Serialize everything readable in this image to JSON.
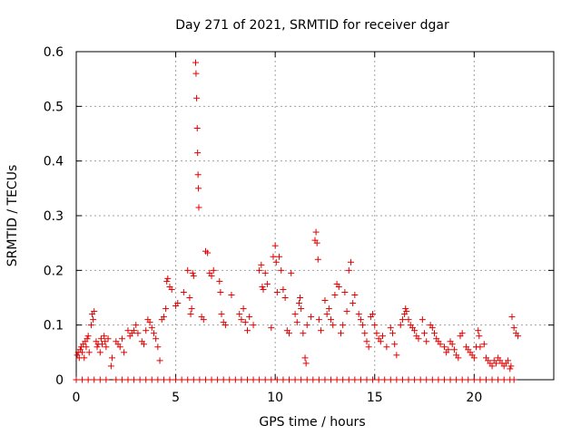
{
  "chart_data": {
    "type": "scatter",
    "title": "Day 271 of 2021, SRMTID for receiver dgar",
    "xlabel": "GPS time / hours",
    "ylabel": "SRMTID / TECUs",
    "xlim": [
      0,
      24
    ],
    "ylim": [
      0,
      0.6
    ],
    "xticks": [
      0,
      5,
      10,
      15,
      20
    ],
    "yticks": [
      0,
      0.1,
      0.2,
      0.3,
      0.4,
      0.5,
      0.6
    ],
    "xtick_labels": [
      "0",
      "5",
      "10",
      "15",
      "20"
    ],
    "ytick_labels": [
      "0",
      "0.1",
      "0.2",
      "0.3",
      "0.4",
      "0.5",
      "0.6"
    ],
    "grid": true,
    "marker": "+",
    "color": "#e00000",
    "series": [
      {
        "name": "SRMTID",
        "points": [
          [
            0.05,
            0.045
          ],
          [
            0.1,
            0.05
          ],
          [
            0.15,
            0.04
          ],
          [
            0.2,
            0.055
          ],
          [
            0.25,
            0.06
          ],
          [
            0.3,
            0.05
          ],
          [
            0.35,
            0.065
          ],
          [
            0.4,
            0.04
          ],
          [
            0.45,
            0.07
          ],
          [
            0.5,
            0.06
          ],
          [
            0.55,
            0.075
          ],
          [
            0.6,
            0.08
          ],
          [
            0.65,
            0.05
          ],
          [
            0.75,
            0.1
          ],
          [
            0.8,
            0.12
          ],
          [
            0.85,
            0.11
          ],
          [
            0.9,
            0.125
          ],
          [
            1.0,
            0.07
          ],
          [
            1.05,
            0.06
          ],
          [
            1.1,
            0.065
          ],
          [
            1.2,
            0.05
          ],
          [
            1.25,
            0.075
          ],
          [
            1.3,
            0.065
          ],
          [
            1.4,
            0.08
          ],
          [
            1.45,
            0.07
          ],
          [
            1.5,
            0.06
          ],
          [
            1.6,
            0.075
          ],
          [
            1.75,
            0.025
          ],
          [
            1.8,
            0.04
          ],
          [
            2.0,
            0.07
          ],
          [
            2.1,
            0.065
          ],
          [
            2.2,
            0.06
          ],
          [
            2.3,
            0.075
          ],
          [
            2.4,
            0.05
          ],
          [
            2.6,
            0.09
          ],
          [
            2.7,
            0.08
          ],
          [
            2.8,
            0.085
          ],
          [
            2.9,
            0.09
          ],
          [
            3.0,
            0.1
          ],
          [
            3.1,
            0.085
          ],
          [
            3.3,
            0.07
          ],
          [
            3.4,
            0.065
          ],
          [
            3.5,
            0.09
          ],
          [
            3.6,
            0.11
          ],
          [
            3.7,
            0.105
          ],
          [
            3.8,
            0.095
          ],
          [
            3.9,
            0.085
          ],
          [
            4.0,
            0.075
          ],
          [
            4.1,
            0.06
          ],
          [
            4.2,
            0.035
          ],
          [
            4.3,
            0.11
          ],
          [
            4.4,
            0.115
          ],
          [
            4.5,
            0.13
          ],
          [
            4.55,
            0.18
          ],
          [
            4.6,
            0.185
          ],
          [
            4.7,
            0.17
          ],
          [
            4.8,
            0.165
          ],
          [
            5.0,
            0.135
          ],
          [
            5.1,
            0.14
          ],
          [
            5.4,
            0.16
          ],
          [
            5.6,
            0.2
          ],
          [
            5.7,
            0.15
          ],
          [
            5.75,
            0.12
          ],
          [
            5.8,
            0.13
          ],
          [
            5.85,
            0.195
          ],
          [
            5.9,
            0.19
          ],
          [
            6.0,
            0.58
          ],
          [
            6.02,
            0.56
          ],
          [
            6.05,
            0.515
          ],
          [
            6.08,
            0.46
          ],
          [
            6.1,
            0.415
          ],
          [
            6.12,
            0.375
          ],
          [
            6.14,
            0.35
          ],
          [
            6.16,
            0.315
          ],
          [
            6.3,
            0.115
          ],
          [
            6.4,
            0.11
          ],
          [
            6.5,
            0.235
          ],
          [
            6.6,
            0.232
          ],
          [
            6.7,
            0.195
          ],
          [
            6.8,
            0.19
          ],
          [
            6.9,
            0.2
          ],
          [
            7.2,
            0.18
          ],
          [
            7.25,
            0.16
          ],
          [
            7.3,
            0.12
          ],
          [
            7.4,
            0.105
          ],
          [
            7.5,
            0.1
          ],
          [
            7.8,
            0.155
          ],
          [
            8.2,
            0.12
          ],
          [
            8.3,
            0.11
          ],
          [
            8.4,
            0.13
          ],
          [
            8.5,
            0.105
          ],
          [
            8.6,
            0.09
          ],
          [
            8.7,
            0.115
          ],
          [
            8.9,
            0.1
          ],
          [
            9.2,
            0.2
          ],
          [
            9.3,
            0.21
          ],
          [
            9.35,
            0.17
          ],
          [
            9.4,
            0.165
          ],
          [
            9.5,
            0.195
          ],
          [
            9.6,
            0.175
          ],
          [
            9.8,
            0.095
          ],
          [
            9.9,
            0.225
          ],
          [
            10.0,
            0.245
          ],
          [
            10.05,
            0.215
          ],
          [
            10.1,
            0.16
          ],
          [
            10.2,
            0.225
          ],
          [
            10.3,
            0.2
          ],
          [
            10.4,
            0.165
          ],
          [
            10.5,
            0.15
          ],
          [
            10.6,
            0.09
          ],
          [
            10.7,
            0.085
          ],
          [
            10.8,
            0.195
          ],
          [
            11.0,
            0.12
          ],
          [
            11.1,
            0.105
          ],
          [
            11.2,
            0.14
          ],
          [
            11.25,
            0.15
          ],
          [
            11.3,
            0.13
          ],
          [
            11.4,
            0.085
          ],
          [
            11.5,
            0.04
          ],
          [
            11.55,
            0.03
          ],
          [
            11.6,
            0.1
          ],
          [
            11.8,
            0.115
          ],
          [
            12.0,
            0.255
          ],
          [
            12.05,
            0.27
          ],
          [
            12.1,
            0.25
          ],
          [
            12.15,
            0.22
          ],
          [
            12.2,
            0.11
          ],
          [
            12.3,
            0.09
          ],
          [
            12.5,
            0.145
          ],
          [
            12.6,
            0.12
          ],
          [
            12.7,
            0.13
          ],
          [
            12.8,
            0.11
          ],
          [
            12.9,
            0.1
          ],
          [
            13.0,
            0.155
          ],
          [
            13.1,
            0.175
          ],
          [
            13.2,
            0.17
          ],
          [
            13.3,
            0.085
          ],
          [
            13.4,
            0.1
          ],
          [
            13.5,
            0.16
          ],
          [
            13.6,
            0.125
          ],
          [
            13.7,
            0.2
          ],
          [
            13.8,
            0.215
          ],
          [
            13.9,
            0.14
          ],
          [
            14.0,
            0.155
          ],
          [
            14.2,
            0.12
          ],
          [
            14.3,
            0.11
          ],
          [
            14.4,
            0.1
          ],
          [
            14.5,
            0.085
          ],
          [
            14.6,
            0.07
          ],
          [
            14.7,
            0.06
          ],
          [
            14.8,
            0.115
          ],
          [
            14.9,
            0.12
          ],
          [
            15.0,
            0.1
          ],
          [
            15.1,
            0.085
          ],
          [
            15.2,
            0.075
          ],
          [
            15.3,
            0.07
          ],
          [
            15.4,
            0.08
          ],
          [
            15.6,
            0.06
          ],
          [
            15.8,
            0.095
          ],
          [
            15.9,
            0.085
          ],
          [
            16.0,
            0.065
          ],
          [
            16.1,
            0.045
          ],
          [
            16.3,
            0.1
          ],
          [
            16.4,
            0.11
          ],
          [
            16.5,
            0.12
          ],
          [
            16.55,
            0.13
          ],
          [
            16.6,
            0.125
          ],
          [
            16.7,
            0.11
          ],
          [
            16.8,
            0.1
          ],
          [
            16.9,
            0.095
          ],
          [
            17.0,
            0.09
          ],
          [
            17.1,
            0.08
          ],
          [
            17.2,
            0.075
          ],
          [
            17.4,
            0.11
          ],
          [
            17.5,
            0.085
          ],
          [
            17.6,
            0.07
          ],
          [
            17.8,
            0.1
          ],
          [
            17.9,
            0.095
          ],
          [
            18.0,
            0.085
          ],
          [
            18.1,
            0.075
          ],
          [
            18.2,
            0.07
          ],
          [
            18.3,
            0.065
          ],
          [
            18.5,
            0.06
          ],
          [
            18.6,
            0.05
          ],
          [
            18.7,
            0.055
          ],
          [
            18.8,
            0.07
          ],
          [
            18.9,
            0.065
          ],
          [
            19.0,
            0.055
          ],
          [
            19.1,
            0.045
          ],
          [
            19.2,
            0.04
          ],
          [
            19.3,
            0.08
          ],
          [
            19.4,
            0.085
          ],
          [
            19.6,
            0.06
          ],
          [
            19.7,
            0.055
          ],
          [
            19.8,
            0.05
          ],
          [
            19.9,
            0.045
          ],
          [
            20.0,
            0.04
          ],
          [
            20.1,
            0.06
          ],
          [
            20.2,
            0.09
          ],
          [
            20.25,
            0.08
          ],
          [
            20.3,
            0.06
          ],
          [
            20.5,
            0.065
          ],
          [
            20.6,
            0.04
          ],
          [
            20.7,
            0.035
          ],
          [
            20.8,
            0.03
          ],
          [
            20.9,
            0.025
          ],
          [
            21.0,
            0.035
          ],
          [
            21.1,
            0.03
          ],
          [
            21.2,
            0.04
          ],
          [
            21.3,
            0.035
          ],
          [
            21.4,
            0.03
          ],
          [
            21.5,
            0.025
          ],
          [
            21.6,
            0.03
          ],
          [
            21.7,
            0.035
          ],
          [
            21.8,
            0.02
          ],
          [
            21.85,
            0.025
          ],
          [
            21.9,
            0.115
          ],
          [
            22.0,
            0.095
          ],
          [
            22.1,
            0.085
          ],
          [
            22.2,
            0.08
          ],
          [
            0.0,
            0.0
          ],
          [
            0.3,
            0.0
          ],
          [
            0.6,
            0.0
          ],
          [
            0.9,
            0.0
          ],
          [
            1.2,
            0.0
          ],
          [
            1.5,
            0.0
          ],
          [
            2.0,
            0.0
          ],
          [
            2.3,
            0.0
          ],
          [
            2.6,
            0.0
          ],
          [
            2.9,
            0.0
          ],
          [
            3.2,
            0.0
          ],
          [
            3.5,
            0.0
          ],
          [
            3.8,
            0.0
          ],
          [
            4.1,
            0.0
          ],
          [
            4.4,
            0.0
          ],
          [
            4.7,
            0.0
          ],
          [
            5.0,
            0.0
          ],
          [
            5.3,
            0.0
          ],
          [
            5.6,
            0.0
          ],
          [
            5.9,
            0.0
          ],
          [
            6.2,
            0.0
          ],
          [
            6.5,
            0.0
          ],
          [
            6.8,
            0.0
          ],
          [
            7.1,
            0.0
          ],
          [
            7.4,
            0.0
          ],
          [
            7.7,
            0.0
          ],
          [
            8.0,
            0.0
          ],
          [
            8.3,
            0.0
          ],
          [
            8.6,
            0.0
          ],
          [
            8.9,
            0.0
          ],
          [
            9.2,
            0.0
          ],
          [
            9.5,
            0.0
          ],
          [
            9.8,
            0.0
          ],
          [
            10.1,
            0.0
          ],
          [
            10.4,
            0.0
          ],
          [
            10.7,
            0.0
          ],
          [
            11.0,
            0.0
          ],
          [
            11.3,
            0.0
          ],
          [
            11.6,
            0.0
          ],
          [
            11.9,
            0.0
          ],
          [
            12.2,
            0.0
          ],
          [
            12.5,
            0.0
          ],
          [
            12.8,
            0.0
          ],
          [
            13.1,
            0.0
          ],
          [
            13.4,
            0.0
          ],
          [
            13.7,
            0.0
          ],
          [
            14.0,
            0.0
          ],
          [
            14.3,
            0.0
          ],
          [
            14.6,
            0.0
          ],
          [
            14.9,
            0.0
          ],
          [
            15.2,
            0.0
          ],
          [
            15.5,
            0.0
          ],
          [
            15.8,
            0.0
          ],
          [
            16.1,
            0.0
          ],
          [
            16.4,
            0.0
          ],
          [
            16.7,
            0.0
          ],
          [
            17.0,
            0.0
          ],
          [
            17.3,
            0.0
          ],
          [
            17.6,
            0.0
          ],
          [
            17.9,
            0.0
          ],
          [
            18.2,
            0.0
          ],
          [
            18.5,
            0.0
          ],
          [
            18.8,
            0.0
          ],
          [
            19.1,
            0.0
          ],
          [
            19.4,
            0.0
          ],
          [
            19.7,
            0.0
          ],
          [
            20.0,
            0.0
          ],
          [
            20.3,
            0.0
          ],
          [
            20.6,
            0.0
          ],
          [
            20.9,
            0.0
          ],
          [
            21.2,
            0.0
          ],
          [
            21.5,
            0.0
          ],
          [
            21.8,
            0.0
          ],
          [
            22.0,
            0.0
          ]
        ]
      }
    ]
  }
}
